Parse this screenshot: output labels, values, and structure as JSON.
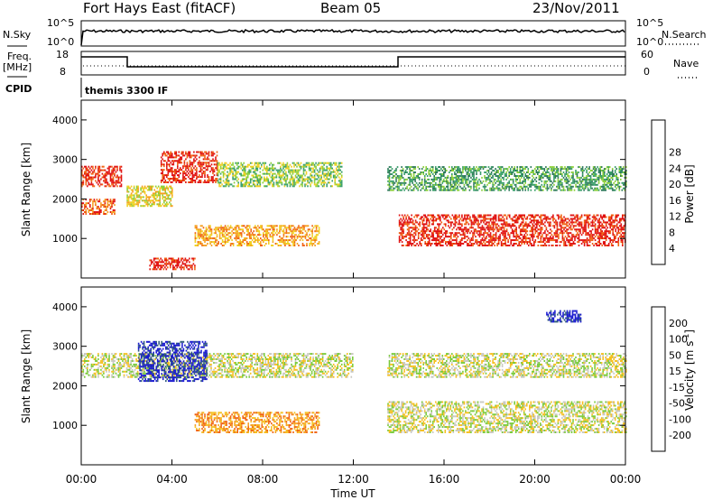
{
  "header": {
    "title": "Fort Hays East (fitACF)",
    "beam": "Beam 05",
    "date": "23/Nov/2011"
  },
  "strips": {
    "nsky_label": "N.Sky",
    "nsky_top": "10^5",
    "nsky_bottom": "10^0",
    "nsearch_label": "N.Search",
    "nsearch_top": "10^5",
    "nsearch_bottom": "10^0",
    "freq_label": "Freq.",
    "freq_unit": "[MHz]",
    "freq_top": "18",
    "freq_bottom": "8",
    "nave_label": "Nave",
    "nave_top": "60",
    "nave_bottom": "0",
    "cpid_label": "CPID",
    "cpid_value": "themis 3300 IF"
  },
  "chart_data": [
    {
      "type": "heatmap",
      "name": "power-panel",
      "ylabel": "Slant Range [km]",
      "xlabel": "",
      "yticks": [
        "1000",
        "2000",
        "3000",
        "4000"
      ],
      "ylim": [
        0,
        4500
      ],
      "colorbar": {
        "label": "Power [dB]",
        "ticks": [
          "4",
          "8",
          "12",
          "16",
          "20",
          "24",
          "28"
        ],
        "colors": [
          "#1a1aff",
          "#2a4a9a",
          "#2e7a5a",
          "#3aa06a",
          "#8ccf3a",
          "#f0d020",
          "#f5a020",
          "#f06010",
          "#e01010"
        ]
      },
      "echo_bands": [
        {
          "t0": 0.0,
          "t1": 1.8,
          "r0": 2300,
          "r1": 2800,
          "level": 8
        },
        {
          "t0": 0.0,
          "t1": 1.5,
          "r0": 1600,
          "r1": 2000,
          "level": 7
        },
        {
          "t0": 2.0,
          "t1": 4.0,
          "r0": 1800,
          "r1": 2300,
          "level": 5
        },
        {
          "t0": 3.5,
          "t1": 6.0,
          "r0": 2400,
          "r1": 3200,
          "level": 8
        },
        {
          "t0": 6.0,
          "t1": 11.5,
          "r0": 2300,
          "r1": 2900,
          "level": 4
        },
        {
          "t0": 5.0,
          "t1": 10.5,
          "r0": 800,
          "r1": 1300,
          "level": 6
        },
        {
          "t0": 14.0,
          "t1": 24.0,
          "r0": 800,
          "r1": 1600,
          "level": 8
        },
        {
          "t0": 13.5,
          "t1": 24.0,
          "r0": 2200,
          "r1": 2800,
          "level": 3
        },
        {
          "t0": 3.0,
          "t1": 5.0,
          "r0": 200,
          "r1": 500,
          "level": 8
        }
      ]
    },
    {
      "type": "heatmap",
      "name": "velocity-panel",
      "ylabel": "Slant Range [km]",
      "xlabel": "Time UT",
      "yticks": [
        "1000",
        "2000",
        "3000",
        "4000"
      ],
      "ylim": [
        0,
        4500
      ],
      "colorbar": {
        "label": "Velocity [m s",
        "label_sup": "-1",
        "label_end": "]",
        "ticks": [
          "200",
          "100",
          "50",
          "15",
          "-15",
          "-50",
          "-100",
          "-200"
        ],
        "colors": [
          "#1a1ad0",
          "#2e5a7a",
          "#3a9a5a",
          "#7acb3a",
          "#c8c8c0",
          "#f5c020",
          "#f5a020",
          "#f06010",
          "#e01010"
        ]
      },
      "echo_bands": [
        {
          "t0": 0.0,
          "t1": 12.0,
          "r0": 2200,
          "r1": 2800,
          "level": 4
        },
        {
          "t0": 2.5,
          "t1": 5.5,
          "r0": 2100,
          "r1": 3100,
          "level": 0
        },
        {
          "t0": 5.0,
          "t1": 10.5,
          "r0": 800,
          "r1": 1300,
          "level": 6
        },
        {
          "t0": 13.5,
          "t1": 24.0,
          "r0": 800,
          "r1": 1600,
          "level": 4
        },
        {
          "t0": 13.5,
          "t1": 24.0,
          "r0": 2200,
          "r1": 2800,
          "level": 4
        },
        {
          "t0": 20.5,
          "t1": 22.0,
          "r0": 3600,
          "r1": 3900,
          "level": 0
        }
      ]
    }
  ],
  "time_axis": {
    "label": "Time UT",
    "ticks": [
      "00:00",
      "04:00",
      "08:00",
      "12:00",
      "16:00",
      "20:00",
      "00:00"
    ]
  }
}
